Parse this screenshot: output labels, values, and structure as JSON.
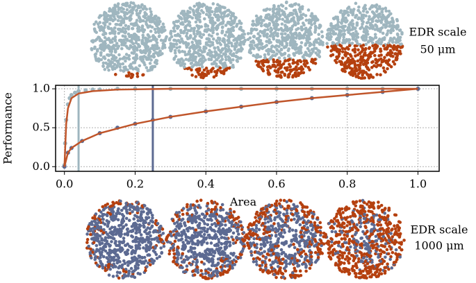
{
  "chart_data": {
    "type": "scatter",
    "xlabel": "Area",
    "ylabel": "Performance",
    "xlim": [
      -0.025,
      1.06
    ],
    "ylim": [
      -0.06,
      1.045
    ],
    "xticks": [
      {
        "value": 0,
        "label": "0.0"
      },
      0.2,
      0.4,
      0.6,
      0.8,
      {
        "value": 1,
        "label": "1.0"
      }
    ],
    "yticks": [
      {
        "value": 0,
        "label": "0.0"
      },
      0.5,
      {
        "value": 1,
        "label": "1.0"
      }
    ],
    "grid": true,
    "top_label": [
      "EDR scale",
      "50 μm"
    ],
    "bottom_label": [
      "EDR scale",
      "1000 μm"
    ],
    "series": [
      {
        "type": "scatter",
        "color": "#9fb6bf",
        "x": [
          0,
          0.002,
          0.005,
          0.01,
          0.015,
          0.02,
          0.03,
          0.04,
          0.06,
          0.08,
          0.1,
          0.15,
          0.2,
          0.3,
          0.4,
          0.5,
          0.6,
          0.7,
          0.8,
          0.9,
          1.0
        ],
        "values": [
          0.02,
          0.3,
          0.6,
          0.8,
          0.88,
          0.92,
          0.95,
          0.97,
          0.98,
          0.99,
          0.99,
          1.0,
          1.0,
          1.0,
          1.0,
          1.0,
          1.0,
          1.0,
          1.0,
          1.0,
          1.0
        ]
      },
      {
        "type": "scatter",
        "color": "#5c6a92",
        "x": [
          0,
          0.01,
          0.02,
          0.05,
          0.1,
          0.15,
          0.2,
          0.25,
          0.3,
          0.4,
          0.5,
          0.6,
          0.7,
          0.8,
          0.9,
          1.0
        ],
        "values": [
          0,
          0.18,
          0.24,
          0.33,
          0.43,
          0.5,
          0.55,
          0.6,
          0.64,
          0.71,
          0.77,
          0.83,
          0.88,
          0.92,
          0.96,
          1.0
        ]
      },
      {
        "type": "line",
        "color": "#c0552a",
        "x": [
          0,
          0.005,
          0.01,
          0.02,
          0.04,
          0.08,
          0.15,
          0.3,
          0.6,
          1.0
        ],
        "values": [
          0,
          0.55,
          0.75,
          0.88,
          0.94,
          0.97,
          0.99,
          1.0,
          1.0,
          1.0
        ]
      },
      {
        "type": "line",
        "color": "#c0552a",
        "x": [
          0,
          0.01,
          0.02,
          0.05,
          0.1,
          0.2,
          0.3,
          0.4,
          0.5,
          0.6,
          0.7,
          0.8,
          0.9,
          1.0
        ],
        "values": [
          0,
          0.18,
          0.24,
          0.33,
          0.43,
          0.55,
          0.64,
          0.71,
          0.77,
          0.83,
          0.88,
          0.92,
          0.96,
          1.0
        ]
      }
    ],
    "vlines": [
      {
        "x": 0.04,
        "color": "#9fb6bf"
      },
      {
        "x": 0.25,
        "color": "#5c6a92"
      }
    ]
  }
}
